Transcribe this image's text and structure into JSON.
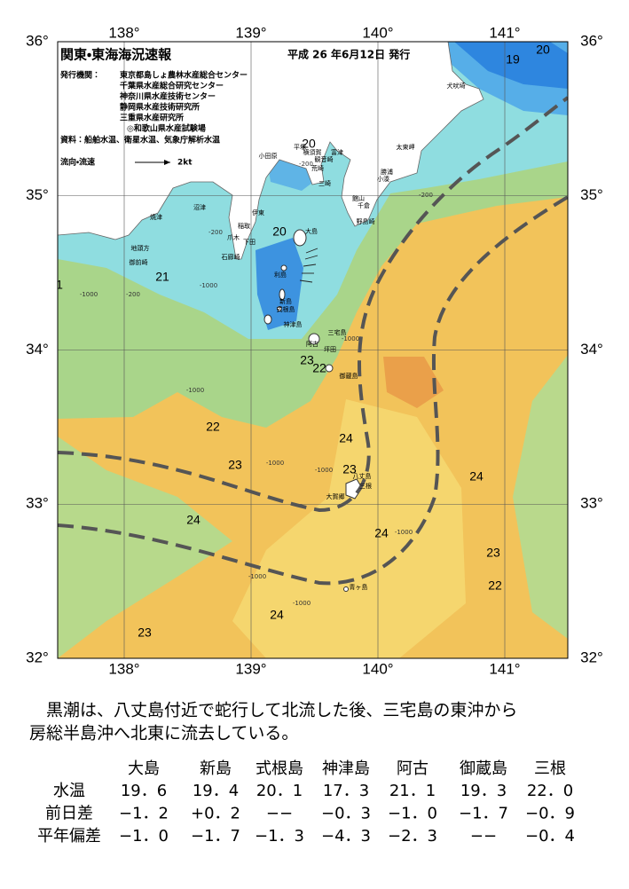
{
  "map": {
    "title": "関東・東海海況速報",
    "issued": "平成 26 年6月12日 発行",
    "agencies_label": "発行機関：",
    "agencies": [
      "東京都島しょ農林水産総合センター",
      "千葉県水産総合研究センター",
      "神奈川県水産技術センター",
      "静岡県水産技術研究所",
      "三重県水産研究所",
      "◎和歌山県水産試験場"
    ],
    "source": "資料：船舶水温、衛星水温、気象庁解析水温",
    "current_legend": "流向・流速",
    "current_unit": "2kt",
    "lon_ticks": [
      {
        "value": 138,
        "label": "138°"
      },
      {
        "value": 139,
        "label": "139°"
      },
      {
        "value": 140,
        "label": "140°"
      },
      {
        "value": 141,
        "label": "141°"
      }
    ],
    "lat_ticks": [
      {
        "value": 36,
        "label": "36°"
      },
      {
        "value": 35,
        "label": "35°"
      },
      {
        "value": 34,
        "label": "34°"
      },
      {
        "value": 33,
        "label": "33°"
      },
      {
        "value": 32,
        "label": "32°"
      }
    ],
    "contour_labels": [
      "20",
      "19",
      "20",
      "20",
      "21",
      "1",
      "23",
      "22",
      "22",
      "24",
      "23",
      "23",
      "24",
      "24",
      "24",
      "23",
      "22",
      "24",
      "23"
    ],
    "depth_labels": [
      "-200",
      "-200",
      "-1000",
      "-200",
      "-1000",
      "-1000",
      "-1000",
      "-1000",
      "-200",
      "-1000",
      "-1000",
      "-1000",
      "-1000"
    ],
    "places": [
      "平塚",
      "横須賀",
      "小田原",
      "観音崎",
      "富津",
      "荒崎",
      "三崎",
      "館山",
      "千倉",
      "野島崎",
      "勝浦",
      "小湊",
      "太東岬",
      "犬吠埼",
      "焼津",
      "沼津",
      "伊東",
      "稲取",
      "下田",
      "爪木",
      "石廊崎",
      "地頭方",
      "御前崎",
      "大島",
      "利島",
      "新島",
      "式根島",
      "神津島",
      "三宅島",
      "阿古",
      "坪田",
      "御蔵島",
      "八丈島",
      "三根",
      "大賀郷",
      "青ヶ島"
    ]
  },
  "summary": [
    "黒潮は、八丈島付近で蛇行して北流した後、三宅島の東沖から",
    "房総半島沖へ北東に流去している。"
  ],
  "table": {
    "columns": [
      "大島",
      "新島",
      "式根島",
      "神津島",
      "阿古",
      "御蔵島",
      "三根"
    ],
    "rows": [
      {
        "label": "水温",
        "cells": [
          "19．6",
          "19．4",
          "20．1",
          "17．3",
          "21．1",
          "19．3",
          "22．0"
        ]
      },
      {
        "label": "前日差",
        "cells": [
          "−1．2",
          "+0．2",
          "−−",
          "−0．3",
          "−1．0",
          "−1．7",
          "−0．9"
        ]
      },
      {
        "label": "平年偏差",
        "cells": [
          "−1．0",
          "−1．7",
          "−1．3",
          "−4．3",
          "−2．3",
          "−−",
          "−0．4"
        ]
      }
    ]
  }
}
